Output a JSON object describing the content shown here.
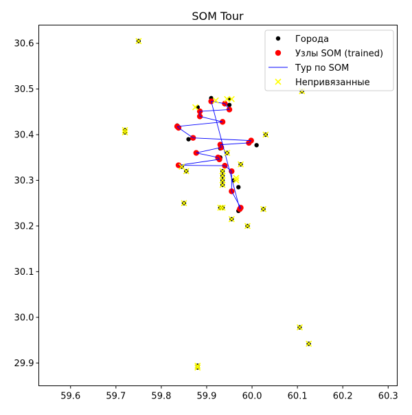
{
  "chart_data": {
    "type": "scatter",
    "title": "SOM Tour",
    "xlabel": "",
    "ylabel": "",
    "xlim": [
      59.53,
      60.32
    ],
    "ylim": [
      29.85,
      30.64
    ],
    "x_ticks": [
      59.6,
      59.7,
      59.8,
      59.9,
      60.0,
      60.1,
      60.2,
      60.3
    ],
    "x_tick_labels": [
      "59.6",
      "59.7",
      "59.8",
      "59.9",
      "60.0",
      "60.1",
      "60.2",
      "60.3"
    ],
    "y_ticks": [
      29.9,
      30.0,
      30.1,
      30.2,
      30.3,
      30.4,
      30.5,
      30.6
    ],
    "y_tick_labels": [
      "29.9",
      "30.0",
      "30.1",
      "30.2",
      "30.3",
      "30.4",
      "30.5",
      "30.6"
    ],
    "grid": false,
    "legend_position": "top-right",
    "colors": {
      "cities": "#000000",
      "som_nodes": "#ff0000",
      "tour": "#0000ff",
      "unassigned": "#ffff00"
    },
    "series": [
      {
        "name": "Города",
        "kind": "scatter",
        "marker": "circle",
        "color": "#000000",
        "points": [
          [
            59.75,
            30.605
          ],
          [
            59.72,
            30.41
          ],
          [
            59.72,
            30.405
          ],
          [
            60.11,
            30.495
          ],
          [
            60.03,
            30.4
          ],
          [
            59.91,
            30.48
          ],
          [
            59.95,
            30.465
          ],
          [
            59.95,
            30.478
          ],
          [
            59.88,
            30.46
          ],
          [
            59.835,
            30.42
          ],
          [
            59.86,
            30.39
          ],
          [
            60.01,
            30.377
          ],
          [
            59.93,
            30.37
          ],
          [
            59.945,
            30.36
          ],
          [
            59.975,
            30.335
          ],
          [
            59.93,
            30.35
          ],
          [
            59.935,
            30.32
          ],
          [
            59.935,
            30.31
          ],
          [
            59.935,
            30.3
          ],
          [
            59.935,
            30.29
          ],
          [
            59.96,
            30.3
          ],
          [
            59.97,
            30.285
          ],
          [
            59.855,
            30.32
          ],
          [
            59.845,
            30.33
          ],
          [
            59.85,
            30.25
          ],
          [
            59.93,
            30.24
          ],
          [
            59.935,
            30.24
          ],
          [
            59.97,
            30.233
          ],
          [
            60.025,
            30.237
          ],
          [
            59.955,
            30.215
          ],
          [
            59.99,
            30.2
          ],
          [
            60.105,
            29.978
          ],
          [
            60.125,
            29.942
          ],
          [
            59.88,
            29.89
          ],
          [
            59.88,
            29.894
          ]
        ]
      },
      {
        "name": "Узлы SOM (trained)",
        "kind": "scatter",
        "marker": "circle",
        "color": "#ff0000",
        "points": [
          [
            59.91,
            30.473
          ],
          [
            59.94,
            30.468
          ],
          [
            59.95,
            30.455
          ],
          [
            59.885,
            30.451
          ],
          [
            59.885,
            30.44
          ],
          [
            59.935,
            30.428
          ],
          [
            59.835,
            30.418
          ],
          [
            59.838,
            30.415
          ],
          [
            59.87,
            30.393
          ],
          [
            59.998,
            30.387
          ],
          [
            59.993,
            30.382
          ],
          [
            59.93,
            30.378
          ],
          [
            59.932,
            30.372
          ],
          [
            59.877,
            30.36
          ],
          [
            59.925,
            30.35
          ],
          [
            59.928,
            30.346
          ],
          [
            59.838,
            30.333
          ],
          [
            59.94,
            30.332
          ],
          [
            59.955,
            30.32
          ],
          [
            59.955,
            30.276
          ],
          [
            59.975,
            30.24
          ],
          [
            59.973,
            30.237
          ]
        ]
      },
      {
        "name": "Тур по SOM",
        "kind": "line",
        "color": "#0000ff",
        "points": [
          [
            59.91,
            30.473
          ],
          [
            59.94,
            30.468
          ],
          [
            59.95,
            30.455
          ],
          [
            59.885,
            30.451
          ],
          [
            59.885,
            30.44
          ],
          [
            59.935,
            30.428
          ],
          [
            59.835,
            30.418
          ],
          [
            59.838,
            30.415
          ],
          [
            59.87,
            30.393
          ],
          [
            59.998,
            30.387
          ],
          [
            59.993,
            30.382
          ],
          [
            59.93,
            30.378
          ],
          [
            59.932,
            30.372
          ],
          [
            59.877,
            30.36
          ],
          [
            59.925,
            30.35
          ],
          [
            59.928,
            30.346
          ],
          [
            59.838,
            30.333
          ],
          [
            59.94,
            30.332
          ],
          [
            59.955,
            30.32
          ],
          [
            59.955,
            30.276
          ],
          [
            59.975,
            30.24
          ],
          [
            59.973,
            30.237
          ],
          [
            59.91,
            30.473
          ]
        ]
      },
      {
        "name": "Непривязанные",
        "kind": "scatter",
        "marker": "x",
        "color": "#ffff00",
        "points": [
          [
            59.75,
            30.605
          ],
          [
            59.72,
            30.41
          ],
          [
            59.72,
            30.405
          ],
          [
            60.11,
            30.495
          ],
          [
            60.03,
            30.4
          ],
          [
            59.875,
            30.46
          ],
          [
            59.945,
            30.478
          ],
          [
            59.955,
            30.478
          ],
          [
            59.92,
            30.475
          ],
          [
            59.945,
            30.36
          ],
          [
            59.975,
            30.335
          ],
          [
            59.935,
            30.32
          ],
          [
            59.935,
            30.31
          ],
          [
            59.935,
            30.3
          ],
          [
            59.935,
            30.29
          ],
          [
            59.965,
            30.305
          ],
          [
            59.965,
            30.3
          ],
          [
            59.855,
            30.32
          ],
          [
            59.845,
            30.33
          ],
          [
            59.85,
            30.25
          ],
          [
            59.93,
            30.24
          ],
          [
            59.935,
            30.24
          ],
          [
            60.025,
            30.237
          ],
          [
            59.955,
            30.215
          ],
          [
            59.99,
            30.2
          ],
          [
            60.105,
            29.978
          ],
          [
            60.125,
            29.942
          ],
          [
            59.88,
            29.89
          ],
          [
            59.88,
            29.894
          ]
        ]
      }
    ]
  }
}
